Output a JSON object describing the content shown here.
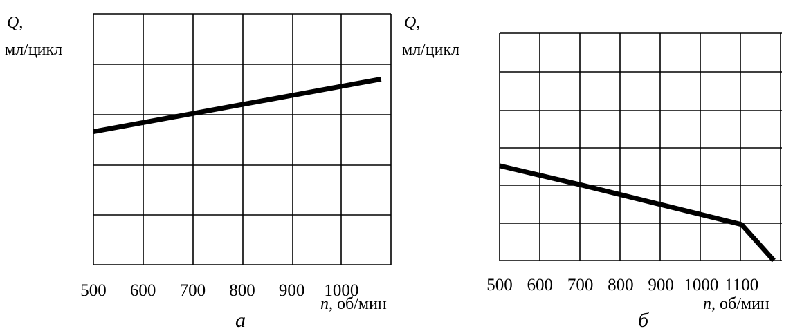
{
  "chart_data": [
    {
      "type": "line",
      "caption": "а",
      "ylabel_symbol": "Q",
      "ylabel_sep": ",",
      "ylabel_unit": "мл/цикл",
      "xlabel_symbol": "n",
      "xlabel_unit": ", об/мин",
      "xlim": [
        500,
        1100
      ],
      "ylim": [
        0,
        5
      ],
      "grid": true,
      "x_ticks": [
        500,
        600,
        700,
        800,
        900,
        1000
      ],
      "series": [
        {
          "x": [
            500,
            1080
          ],
          "y": [
            2.65,
            3.7
          ]
        }
      ],
      "line_color": "#000000"
    },
    {
      "type": "line",
      "caption": "б",
      "ylabel_symbol": "Q",
      "ylabel_sep": ",",
      "ylabel_unit": "мл/цикл",
      "xlabel_symbol": "n",
      "xlabel_unit": ", об/мин",
      "xlim": [
        500,
        1200
      ],
      "ylim": [
        0,
        6
      ],
      "grid": true,
      "x_ticks": [
        500,
        600,
        700,
        800,
        900,
        1000,
        1100
      ],
      "series": [
        {
          "x": [
            500,
            700,
            1100,
            1180
          ],
          "y": [
            2.5,
            2.0,
            0.95,
            0.0
          ]
        }
      ],
      "line_color": "#000000"
    }
  ]
}
